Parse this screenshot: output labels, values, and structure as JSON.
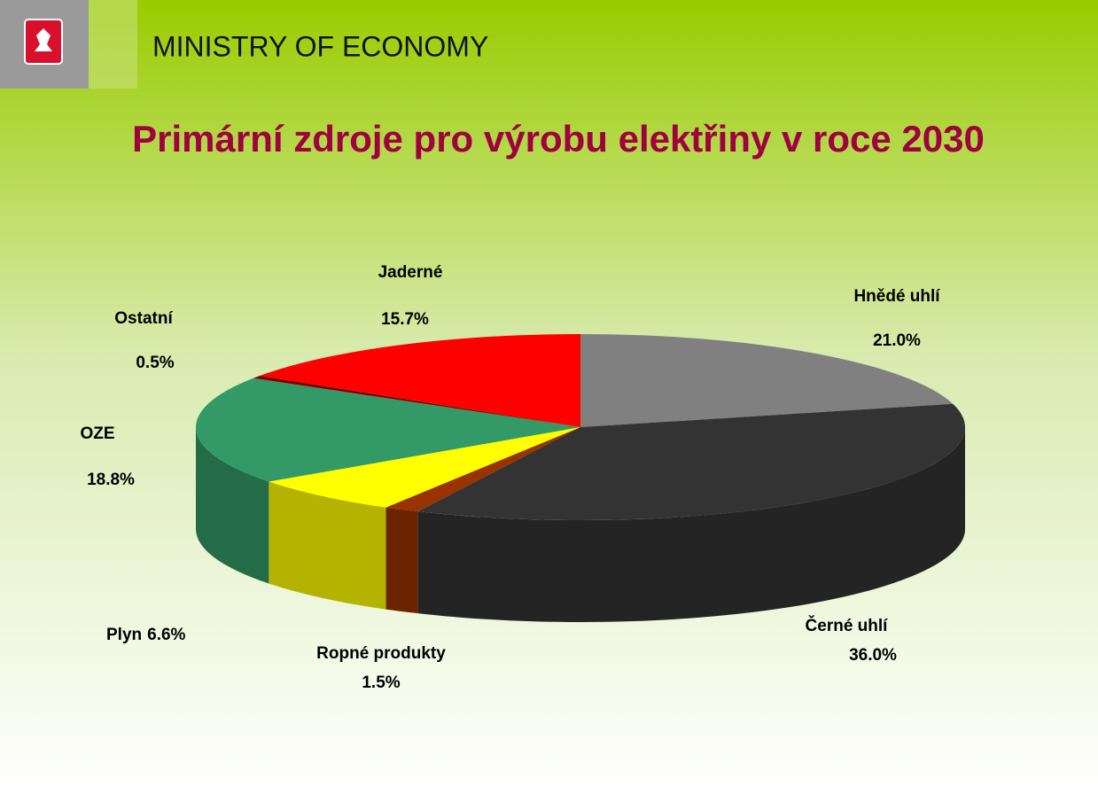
{
  "header": {
    "title": "MINISTRY OF ECONOMY"
  },
  "chart_data": {
    "type": "pie3d",
    "title": "Primární zdroje pro výrobu elektřiny v roce 2030",
    "categories": [
      "Hnědé uhlí",
      "Černé uhlí",
      "Ropné produkty",
      "Plyn",
      "OZE",
      "Ostatní",
      "Jaderné"
    ],
    "values": [
      21.0,
      36.0,
      1.5,
      6.6,
      18.8,
      0.5,
      15.7
    ],
    "value_labels": [
      "21.0%",
      "36.0%",
      "1.5%",
      "6.6%",
      "18.8%",
      "0.5%",
      "15.7%"
    ],
    "colors": [
      "#808080",
      "#333333",
      "#993300",
      "#ffff00",
      "#339966",
      "#800000",
      "#ff0000"
    ]
  }
}
